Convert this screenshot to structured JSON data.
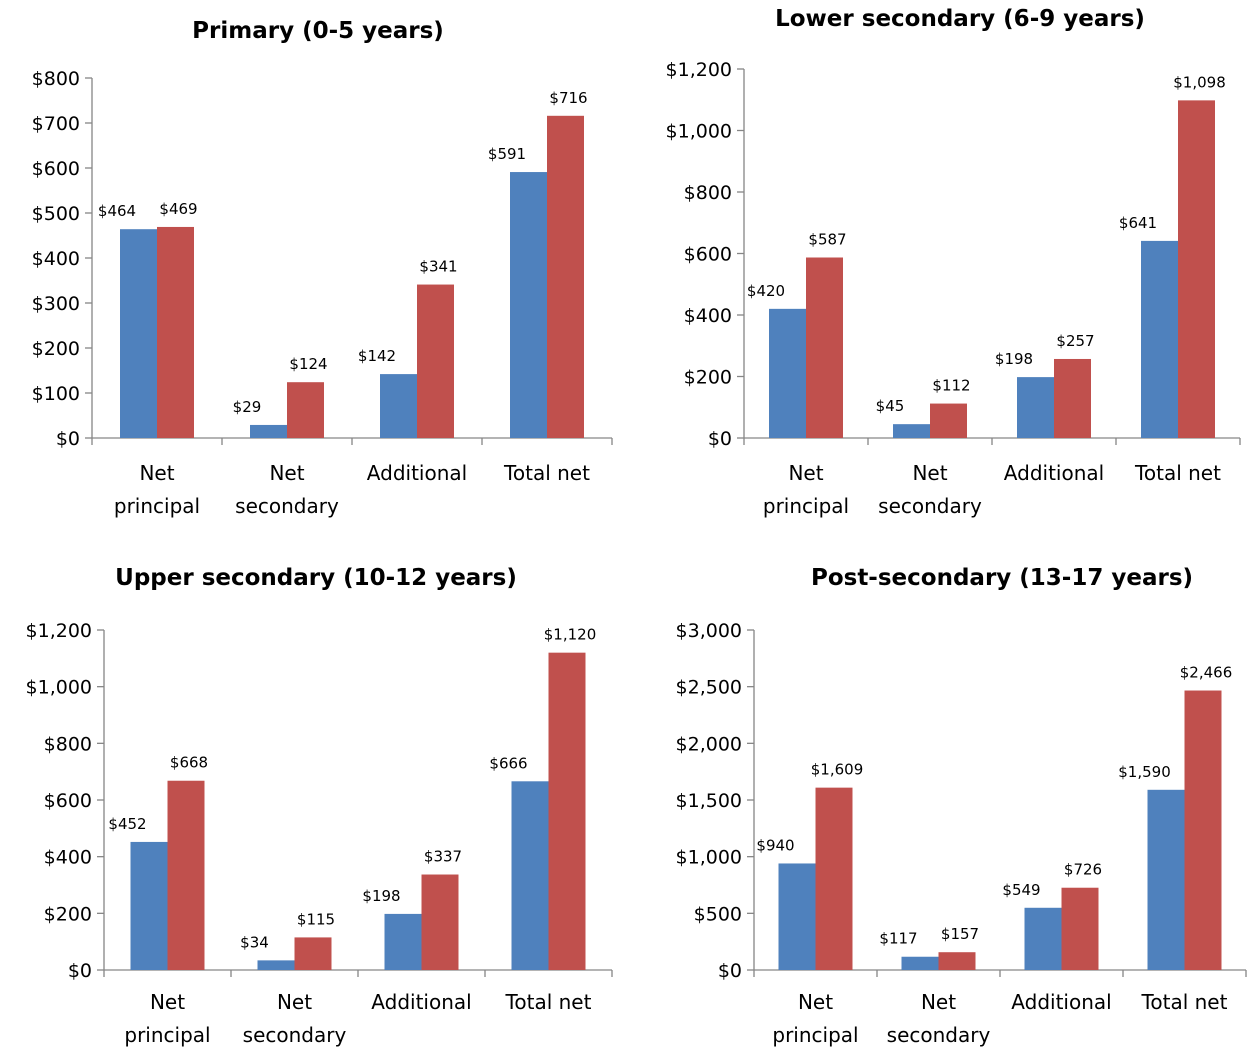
{
  "chart_data": [
    {
      "type": "bar",
      "title": "Primary (0-5 years)",
      "categories": [
        "Net principal",
        "Net secondary",
        "Additional",
        "Total net"
      ],
      "series": [
        {
          "values": [
            464,
            29,
            142,
            591
          ],
          "color": "#4f81bd"
        },
        {
          "values": [
            469,
            124,
            341,
            716
          ],
          "color": "#c0504d"
        }
      ],
      "data_labels": [
        [
          "$464",
          "$29",
          "$142",
          "$591"
        ],
        [
          "$469",
          "$124",
          "$341",
          "$716"
        ]
      ],
      "ylim": [
        0,
        800
      ],
      "yticks": [
        0,
        100,
        200,
        300,
        400,
        500,
        600,
        700,
        800
      ],
      "ytick_labels": [
        "$0",
        "$100",
        "$200",
        "$300",
        "$400",
        "$500",
        "$600",
        "$700",
        "$800"
      ],
      "grid": false,
      "legend": "none"
    },
    {
      "type": "bar",
      "title": "Lower secondary (6-9 years)",
      "categories": [
        "Net principal",
        "Net secondary",
        "Additional",
        "Total net"
      ],
      "series": [
        {
          "values": [
            420,
            45,
            198,
            641
          ],
          "color": "#4f81bd"
        },
        {
          "values": [
            587,
            112,
            257,
            1098
          ],
          "color": "#c0504d"
        }
      ],
      "data_labels": [
        [
          "$420",
          "$45",
          "$198",
          "$641"
        ],
        [
          "$587",
          "$112",
          "$257",
          "$1,098"
        ]
      ],
      "ylim": [
        0,
        1200
      ],
      "yticks": [
        0,
        200,
        400,
        600,
        800,
        1000,
        1200
      ],
      "ytick_labels": [
        "$0",
        "$200",
        "$400",
        "$600",
        "$800",
        "$1,000",
        "$1,200"
      ],
      "grid": false,
      "legend": "none"
    },
    {
      "type": "bar",
      "title": "Upper secondary (10-12 years)",
      "categories": [
        "Net principal",
        "Net secondary",
        "Additional",
        "Total net"
      ],
      "series": [
        {
          "values": [
            452,
            34,
            198,
            666
          ],
          "color": "#4f81bd"
        },
        {
          "values": [
            668,
            115,
            337,
            1120
          ],
          "color": "#c0504d"
        }
      ],
      "data_labels": [
        [
          "$452",
          "$34",
          "$198",
          "$666"
        ],
        [
          "$668",
          "$115",
          "$337",
          "$1,120"
        ]
      ],
      "ylim": [
        0,
        1200
      ],
      "yticks": [
        0,
        200,
        400,
        600,
        800,
        1000,
        1200
      ],
      "ytick_labels": [
        "$0",
        "$200",
        "$400",
        "$600",
        "$800",
        "$1,000",
        "$1,200"
      ],
      "grid": false,
      "legend": "none"
    },
    {
      "type": "bar",
      "title": "Post-secondary (13-17 years)",
      "categories": [
        "Net principal",
        "Net secondary",
        "Additional",
        "Total net"
      ],
      "series": [
        {
          "values": [
            940,
            117,
            549,
            1590
          ],
          "color": "#4f81bd"
        },
        {
          "values": [
            1609,
            157,
            726,
            2466
          ],
          "color": "#c0504d"
        }
      ],
      "data_labels": [
        [
          "$940",
          "$117",
          "$549",
          "$1,590"
        ],
        [
          "$1,609",
          "$157",
          "$726",
          "$2,466"
        ]
      ],
      "ylim": [
        0,
        3000
      ],
      "yticks": [
        0,
        500,
        1000,
        1500,
        2000,
        2500,
        3000
      ],
      "ytick_labels": [
        "$0",
        "$500",
        "$1,000",
        "$1,500",
        "$2,000",
        "$2,500",
        "$3,000"
      ],
      "grid": false,
      "legend": "none"
    }
  ]
}
